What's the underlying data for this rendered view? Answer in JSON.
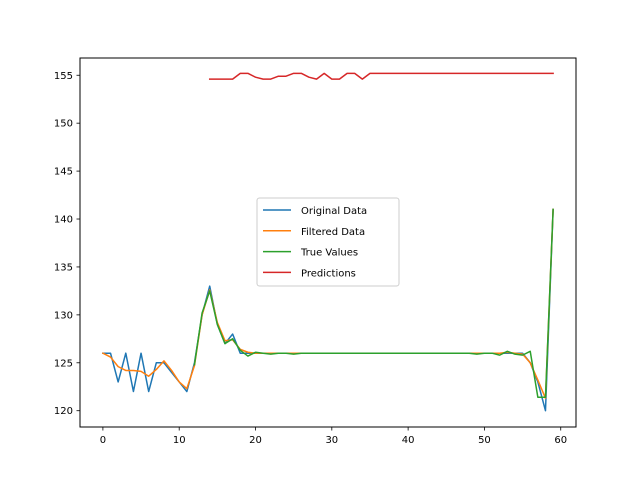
{
  "chart_data": {
    "type": "line",
    "title": "",
    "xlabel": "",
    "ylabel": "",
    "xlim": [
      -3,
      62
    ],
    "ylim": [
      118.3,
      156.8
    ],
    "xticks": [
      0,
      10,
      20,
      30,
      40,
      50,
      60
    ],
    "yticks": [
      120,
      125,
      130,
      135,
      140,
      145,
      150,
      155
    ],
    "grid": false,
    "legend_position": "center",
    "series": [
      {
        "name": "Original Data",
        "color": "#1f77b4",
        "x": [
          0,
          1,
          2,
          3,
          4,
          5,
          6,
          7,
          8,
          9,
          10,
          11,
          12,
          13,
          14,
          15,
          16,
          17,
          18,
          19,
          20,
          21,
          22,
          23,
          24,
          25,
          26,
          27,
          28,
          29,
          30,
          31,
          32,
          33,
          34,
          35,
          36,
          37,
          38,
          39,
          40,
          41,
          42,
          43,
          44,
          45,
          46,
          47,
          48,
          49,
          50,
          51,
          52,
          53,
          54,
          55,
          56,
          57,
          58,
          59
        ],
        "y": [
          126,
          126,
          123,
          126,
          122,
          126,
          122,
          125,
          125,
          124,
          123,
          122,
          125,
          130,
          133,
          129,
          127,
          128,
          126,
          126,
          126,
          126,
          126,
          126,
          126,
          126,
          126,
          126,
          126,
          126,
          126,
          126,
          126,
          126,
          126,
          126,
          126,
          126,
          126,
          126,
          126,
          126,
          126,
          126,
          126,
          126,
          126,
          126,
          126,
          126,
          126,
          126,
          126,
          126,
          126,
          126,
          125,
          123,
          120,
          141
        ]
      },
      {
        "name": "Filtered Data",
        "color": "#ff7f0e",
        "x": [
          0,
          1,
          2,
          3,
          4,
          5,
          6,
          7,
          8,
          9,
          10,
          11,
          12,
          13,
          14,
          15,
          16,
          17,
          18,
          19,
          20,
          21,
          22,
          23,
          24,
          25,
          26,
          27,
          28,
          29,
          30,
          31,
          32,
          33,
          34,
          35,
          36,
          37,
          38,
          39,
          40,
          41,
          42,
          43,
          44,
          45,
          46,
          47,
          48,
          49,
          50,
          51,
          52,
          53,
          54,
          55,
          56,
          57,
          58,
          59
        ],
        "y": [
          126,
          125.6,
          124.6,
          124.2,
          124.2,
          124.1,
          123.6,
          124.3,
          125.2,
          124.2,
          123.0,
          122.3,
          124.7,
          130.0,
          132.6,
          129.2,
          127.3,
          127.4,
          126.4,
          126.1,
          126.0,
          126.0,
          126.0,
          126.0,
          126.0,
          126.0,
          126.0,
          126.0,
          126.0,
          126.0,
          126.0,
          126.0,
          126.0,
          126.0,
          126.0,
          126.0,
          126.0,
          126.0,
          126.0,
          126.0,
          126.0,
          126.0,
          126.0,
          126.0,
          126.0,
          126.0,
          126.0,
          126.0,
          126.0,
          126.0,
          126.0,
          126.0,
          126.0,
          126.1,
          126.0,
          125.9,
          125.0,
          123.2,
          121.3,
          141
        ]
      },
      {
        "name": "True Values",
        "color": "#2ca02c",
        "x": [
          12,
          13,
          14,
          15,
          16,
          17,
          18,
          19,
          20,
          21,
          22,
          23,
          24,
          25,
          26,
          27,
          28,
          29,
          30,
          31,
          32,
          33,
          34,
          35,
          36,
          37,
          38,
          39,
          40,
          41,
          42,
          43,
          44,
          45,
          46,
          47,
          48,
          49,
          50,
          51,
          52,
          53,
          54,
          55,
          56,
          57,
          58,
          59
        ],
        "y": [
          124.8,
          130.2,
          132.5,
          129,
          127,
          127.5,
          126.3,
          125.7,
          126.1,
          126.0,
          125.9,
          126.0,
          126.0,
          125.9,
          126.0,
          126.0,
          126.0,
          126.0,
          126.0,
          126.0,
          126.0,
          126.0,
          126.0,
          126.0,
          126.0,
          126.0,
          126.0,
          126.0,
          126.0,
          126.0,
          126.0,
          126.0,
          126.0,
          126.0,
          126.0,
          126.0,
          126.0,
          125.9,
          126.0,
          126.0,
          125.8,
          126.2,
          125.9,
          125.8,
          126.2,
          121.4,
          121.4,
          141
        ]
      },
      {
        "name": "Predictions",
        "color": "#d62728",
        "x": [
          14,
          15,
          16,
          17,
          18,
          19,
          20,
          21,
          22,
          23,
          24,
          25,
          26,
          27,
          28,
          29,
          30,
          31,
          32,
          33,
          34,
          35,
          36,
          37,
          38,
          39,
          40,
          41,
          42,
          43,
          44,
          45,
          46,
          47,
          48,
          49,
          50,
          51,
          52,
          53,
          54,
          55,
          56,
          57,
          58,
          59
        ],
        "y": [
          154.6,
          154.6,
          154.6,
          154.6,
          155.2,
          155.2,
          154.8,
          154.6,
          154.6,
          154.9,
          154.9,
          155.2,
          155.2,
          154.8,
          154.6,
          155.2,
          154.6,
          154.6,
          155.2,
          155.2,
          154.6,
          155.2,
          155.2,
          155.2,
          155.2,
          155.2,
          155.2,
          155.2,
          155.2,
          155.2,
          155.2,
          155.2,
          155.2,
          155.2,
          155.2,
          155.2,
          155.2,
          155.2,
          155.2,
          155.2,
          155.2,
          155.2,
          155.2,
          155.2,
          155.2,
          155.2
        ]
      }
    ]
  }
}
